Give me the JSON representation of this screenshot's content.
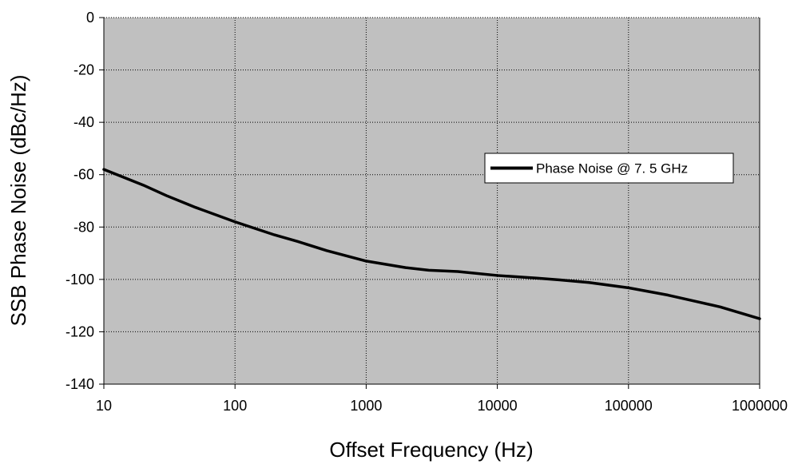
{
  "chart_data": {
    "type": "line",
    "title": "",
    "xlabel": "Offset Frequency (Hz)",
    "ylabel": "SSB Phase Noise (dBc/Hz)",
    "x_scale": "log",
    "xlim": [
      10,
      1000000
    ],
    "ylim": [
      -140,
      0
    ],
    "x_ticks": [
      10,
      100,
      1000,
      10000,
      100000,
      1000000
    ],
    "x_tick_labels": [
      "10",
      "100",
      "1000",
      "10000",
      "100000",
      "1000000"
    ],
    "y_ticks": [
      0,
      -20,
      -40,
      -60,
      -80,
      -100,
      -120,
      -140
    ],
    "y_tick_labels": [
      "0",
      "-20",
      "-40",
      "-60",
      "-80",
      "-100",
      "-120",
      "-140"
    ],
    "grid": true,
    "legend_position": "right",
    "colors": {
      "plot_background": "#c0c0c0",
      "series": "#000000",
      "grid": "#000000"
    },
    "series": [
      {
        "name": "Phase Noise @ 7. 5 GHz",
        "x": [
          10,
          20,
          30,
          50,
          100,
          200,
          300,
          500,
          1000,
          2000,
          3000,
          5000,
          10000,
          20000,
          30000,
          50000,
          100000,
          200000,
          300000,
          500000,
          1000000
        ],
        "y": [
          -58,
          -64,
          -68,
          -72.5,
          -78,
          -83,
          -85.5,
          -89,
          -93,
          -95.5,
          -96.5,
          -97,
          -98.5,
          -99.5,
          -100.2,
          -101.2,
          -103.2,
          -106,
          -108,
          -110.5,
          -115
        ]
      }
    ]
  }
}
